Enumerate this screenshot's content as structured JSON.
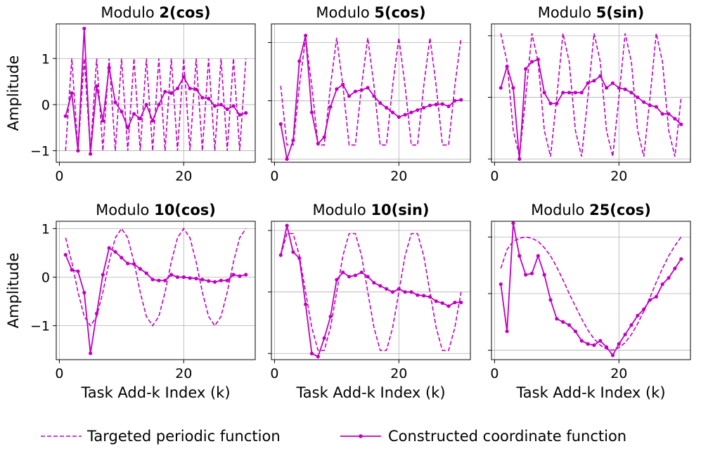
{
  "figure": {
    "legend": {
      "target_label": "Targeted periodic function",
      "constructed_label": "Constructed coordinate function"
    },
    "colors": {
      "line": "#c000c0",
      "grid": "#b0b0b0"
    }
  },
  "chart_data": [
    {
      "type": "line",
      "title_prefix": "Modulo ",
      "title_bold": "2(cos)",
      "ylabel": "Amplitude",
      "xlabel": "",
      "xlim": [
        -0.5,
        31.5
      ],
      "ylim": [
        -1.25,
        1.75
      ],
      "xticks": [
        0,
        20
      ],
      "xtick_labels": [
        "0",
        "20"
      ],
      "yticks": [
        -1,
        0,
        1
      ],
      "ytick_labels": [
        "−1",
        "0",
        "1"
      ],
      "grid_y": [
        -1,
        0,
        1
      ],
      "x": [
        1,
        2,
        3,
        4,
        5,
        6,
        7,
        8,
        9,
        10,
        11,
        12,
        13,
        14,
        15,
        16,
        17,
        18,
        19,
        20,
        21,
        22,
        23,
        24,
        25,
        26,
        27,
        28,
        29,
        30
      ],
      "series": [
        {
          "name": "Targeted periodic function",
          "style": "dashed",
          "values": [
            -1,
            1,
            -1,
            1,
            -1,
            1,
            -1,
            1,
            -1,
            1,
            -1,
            1,
            -1,
            1,
            -1,
            1,
            -1,
            1,
            -1,
            1,
            -1,
            1,
            -1,
            1,
            -1,
            1,
            -1,
            1,
            -1,
            1
          ]
        },
        {
          "name": "Constructed coordinate function",
          "style": "solid-dot",
          "values": [
            -0.25,
            0.25,
            -1.0,
            1.65,
            -1.07,
            0.4,
            -0.35,
            0.8,
            0.05,
            -0.15,
            -0.5,
            -0.2,
            -0.3,
            0.0,
            -0.35,
            0.0,
            0.28,
            0.25,
            0.35,
            0.6,
            0.35,
            0.33,
            0.15,
            0.13,
            -0.03,
            0.0,
            -0.1,
            -0.03,
            -0.22,
            -0.18
          ]
        }
      ]
    },
    {
      "type": "line",
      "title_prefix": "Modulo ",
      "title_bold": "5(cos)",
      "ylabel": "",
      "xlabel": "",
      "xlim": [
        -0.5,
        31.5
      ],
      "ylim": [
        -1.12,
        1.85
      ],
      "xticks": [
        0,
        20
      ],
      "xtick_labels": [
        "0",
        "20"
      ],
      "yticks": [
        -1.05,
        0.2,
        1.45
      ],
      "ytick_labels": [
        "",
        "",
        ""
      ],
      "grid_y": [
        -1.05,
        0.2,
        1.45
      ],
      "x": [
        1,
        2,
        3,
        4,
        5,
        6,
        7,
        8,
        9,
        10,
        11,
        12,
        13,
        14,
        15,
        16,
        17,
        18,
        19,
        20,
        21,
        22,
        23,
        24,
        25,
        26,
        27,
        28,
        29,
        30
      ],
      "series": [
        {
          "name": "Targeted periodic function",
          "style": "dashed",
          "values": [
            0.52,
            -0.75,
            -0.75,
            0.52,
            1.55,
            0.52,
            -0.75,
            -0.75,
            0.52,
            1.55,
            0.52,
            -0.75,
            -0.75,
            0.52,
            1.55,
            0.52,
            -0.75,
            -0.75,
            0.52,
            1.55,
            0.52,
            -0.75,
            -0.75,
            0.52,
            1.55,
            0.52,
            -0.75,
            -0.75,
            0.52,
            1.55
          ]
        },
        {
          "name": "Constructed coordinate function",
          "style": "solid-dot",
          "values": [
            -0.3,
            -1.05,
            -0.65,
            1.05,
            1.6,
            -0.05,
            -0.72,
            -0.58,
            0.07,
            0.45,
            0.55,
            0.3,
            0.4,
            0.43,
            0.48,
            0.3,
            0.15,
            0.05,
            -0.05,
            -0.15,
            -0.1,
            -0.05,
            0.0,
            0.05,
            0.1,
            0.12,
            0.13,
            0.08,
            0.2,
            0.22
          ]
        }
      ]
    },
    {
      "type": "line",
      "title_prefix": "Modulo ",
      "title_bold": "5(sin)",
      "ylabel": "",
      "xlabel": "",
      "xlim": [
        -0.5,
        31.5
      ],
      "ylim": [
        -1.12,
        1.8
      ],
      "xticks": [
        0,
        20
      ],
      "xtick_labels": [
        "0",
        "20"
      ],
      "yticks": [
        -1.05,
        0.25,
        1.55
      ],
      "ytick_labels": [
        "",
        "",
        ""
      ],
      "grid_y": [
        -1.05,
        0.25,
        1.55
      ],
      "x": [
        1,
        2,
        3,
        4,
        5,
        6,
        7,
        8,
        9,
        10,
        11,
        12,
        13,
        14,
        15,
        16,
        17,
        18,
        19,
        20,
        21,
        22,
        23,
        24,
        25,
        26,
        27,
        28,
        29,
        30
      ],
      "series": [
        {
          "name": "Targeted periodic function",
          "style": "dashed",
          "values": [
            1.6,
            1.0,
            -0.45,
            -1.0,
            0.25,
            1.6,
            1.0,
            -0.45,
            -1.0,
            0.25,
            1.6,
            1.0,
            -0.45,
            -1.0,
            0.25,
            1.6,
            1.0,
            -0.45,
            -1.0,
            0.25,
            1.6,
            1.0,
            -0.45,
            -1.0,
            0.25,
            1.6,
            1.0,
            -0.45,
            -1.0,
            0.25
          ]
        },
        {
          "name": "Constructed coordinate function",
          "style": "solid-dot",
          "values": [
            0.45,
            0.9,
            0.45,
            -1.05,
            0.85,
            1.0,
            1.05,
            0.35,
            0.12,
            0.12,
            0.35,
            0.35,
            0.35,
            0.35,
            0.55,
            0.6,
            0.7,
            0.45,
            0.55,
            0.45,
            0.42,
            0.35,
            0.25,
            0.15,
            0.08,
            0.05,
            -0.1,
            -0.1,
            -0.2,
            -0.32
          ]
        }
      ]
    },
    {
      "type": "line",
      "title_prefix": "Modulo ",
      "title_bold": "10(cos)",
      "ylabel": "Amplitude",
      "xlabel": "Task Add-k Index (k)",
      "xlim": [
        -0.5,
        31.5
      ],
      "ylim": [
        -1.7,
        1.15
      ],
      "xticks": [
        0,
        20
      ],
      "xtick_labels": [
        "0",
        "20"
      ],
      "yticks": [
        -1,
        0,
        1
      ],
      "ytick_labels": [
        "−1",
        "0",
        "1"
      ],
      "grid_y": [
        -1,
        0,
        1
      ],
      "x": [
        1,
        2,
        3,
        4,
        5,
        6,
        7,
        8,
        9,
        10,
        11,
        12,
        13,
        14,
        15,
        16,
        17,
        18,
        19,
        20,
        21,
        22,
        23,
        24,
        25,
        26,
        27,
        28,
        29,
        30
      ],
      "series": [
        {
          "name": "Targeted periodic function",
          "style": "dashed",
          "values": [
            0.81,
            0.31,
            -0.31,
            -0.81,
            -1.0,
            -0.81,
            -0.31,
            0.31,
            0.81,
            1.0,
            0.81,
            0.31,
            -0.31,
            -0.81,
            -1.0,
            -0.81,
            -0.31,
            0.31,
            0.81,
            1.0,
            0.81,
            0.31,
            -0.31,
            -0.81,
            -1.0,
            -0.81,
            -0.31,
            0.31,
            0.81,
            1.0
          ]
        },
        {
          "name": "Constructed coordinate function",
          "style": "solid-dot",
          "values": [
            0.46,
            0.15,
            0.12,
            -0.32,
            -1.57,
            -0.75,
            0.05,
            0.6,
            0.52,
            0.4,
            0.28,
            0.27,
            0.17,
            0.08,
            -0.05,
            -0.07,
            -0.07,
            0.05,
            0.0,
            0.0,
            -0.02,
            -0.03,
            -0.05,
            -0.08,
            -0.1,
            -0.07,
            -0.07,
            0.05,
            0.02,
            0.05
          ]
        }
      ]
    },
    {
      "type": "line",
      "title_prefix": "Modulo ",
      "title_bold": "10(sin)",
      "ylabel": "",
      "xlabel": "Task Add-k Index (k)",
      "xlim": [
        -0.5,
        31.5
      ],
      "ylim": [
        -1.2,
        1.05
      ],
      "xticks": [
        0,
        20
      ],
      "xtick_labels": [
        "0",
        "20"
      ],
      "yticks": [
        -1.1,
        -0.1,
        0.9
      ],
      "ytick_labels": [
        "",
        "",
        ""
      ],
      "grid_y": [
        -1.1,
        -0.1,
        0.9
      ],
      "x": [
        1,
        2,
        3,
        4,
        5,
        6,
        7,
        8,
        9,
        10,
        11,
        12,
        13,
        14,
        15,
        16,
        17,
        18,
        19,
        20,
        21,
        22,
        23,
        24,
        25,
        26,
        27,
        28,
        29,
        30
      ],
      "series": [
        {
          "name": "Targeted periodic function",
          "style": "dashed",
          "values": [
            0.49,
            0.85,
            0.85,
            0.49,
            -0.1,
            -0.68,
            -1.05,
            -1.05,
            -0.68,
            -0.1,
            0.49,
            0.85,
            0.85,
            0.49,
            -0.1,
            -0.68,
            -1.05,
            -1.05,
            -0.68,
            -0.1,
            0.49,
            0.85,
            0.85,
            0.49,
            -0.1,
            -0.68,
            -1.05,
            -1.05,
            -0.68,
            -0.1
          ]
        },
        {
          "name": "Constructed coordinate function",
          "style": "solid-dot",
          "values": [
            0.5,
            0.98,
            0.55,
            0.45,
            -0.3,
            -1.1,
            -1.15,
            -0.85,
            -0.5,
            0.1,
            0.22,
            0.15,
            0.17,
            0.22,
            0.15,
            0.05,
            0.0,
            -0.05,
            -0.1,
            -0.05,
            -0.1,
            -0.1,
            -0.15,
            -0.16,
            -0.18,
            -0.25,
            -0.28,
            -0.33,
            -0.27,
            -0.27
          ]
        }
      ]
    },
    {
      "type": "line",
      "title_prefix": "Modulo ",
      "title_bold": "25(cos)",
      "ylabel": "",
      "xlabel": "Task Add-k Index (k)",
      "xlim": [
        -0.5,
        31.5
      ],
      "ylim": [
        -1.15,
        1.05
      ],
      "xticks": [
        0,
        20
      ],
      "xtick_labels": [
        "0",
        "20"
      ],
      "yticks": [
        -1.0,
        -0.1,
        0.8
      ],
      "ytick_labels": [
        "",
        "",
        ""
      ],
      "grid_y": [
        -1.0,
        -0.1,
        0.8
      ],
      "x": [
        1,
        2,
        3,
        4,
        5,
        6,
        7,
        8,
        9,
        10,
        11,
        12,
        13,
        14,
        15,
        16,
        17,
        18,
        19,
        20,
        21,
        22,
        23,
        24,
        25,
        26,
        27,
        28,
        29,
        30
      ],
      "series": [
        {
          "name": "Targeted periodic function",
          "style": "dashed",
          "values": [
            0.3,
            0.6,
            0.73,
            0.78,
            0.8,
            0.78,
            0.73,
            0.63,
            0.5,
            0.32,
            0.12,
            -0.1,
            -0.3,
            -0.5,
            -0.68,
            -0.82,
            -0.92,
            -0.98,
            -1.0,
            -0.96,
            -0.88,
            -0.75,
            -0.58,
            -0.38,
            -0.16,
            0.08,
            0.3,
            0.5,
            0.66,
            0.8
          ]
        },
        {
          "name": "Constructed coordinate function",
          "style": "solid-dot",
          "values": [
            0.05,
            -0.7,
            1.02,
            0.5,
            0.2,
            0.22,
            0.5,
            0.2,
            -0.2,
            -0.5,
            -0.55,
            -0.6,
            -0.7,
            -0.85,
            -0.9,
            -0.92,
            -0.85,
            -0.95,
            -1.08,
            -0.9,
            -0.75,
            -0.6,
            -0.45,
            -0.35,
            -0.2,
            -0.15,
            0.05,
            0.15,
            0.3,
            0.45
          ]
        }
      ]
    }
  ]
}
